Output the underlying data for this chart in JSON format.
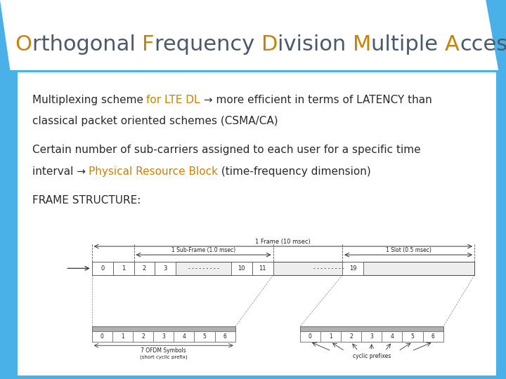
{
  "bg_color": "#4ab0e8",
  "title_orange": "#c8820a",
  "title_dark": "#4a5a6a",
  "highlight_color": "#c8820a",
  "text_color": "#2a2a2a",
  "white": "#ffffff",
  "light_gray": "#e8e8e8",
  "title_parts": [
    {
      "text": "O",
      "color": "#c8820a"
    },
    {
      "text": "rthogonal ",
      "color": "#4a5a6a"
    },
    {
      "text": "F",
      "color": "#c8820a"
    },
    {
      "text": "requency ",
      "color": "#4a5a6a"
    },
    {
      "text": "D",
      "color": "#c8820a"
    },
    {
      "text": "ivision ",
      "color": "#4a5a6a"
    },
    {
      "text": "M",
      "color": "#c8820a"
    },
    {
      "text": "ultiple ",
      "color": "#4a5a6a"
    },
    {
      "text": "A",
      "color": "#c8820a"
    },
    {
      "text": "ccess",
      "color": "#4a5a6a"
    }
  ],
  "title_fontsize": 22,
  "body_fontsize": 11,
  "frame_fontsize": 7
}
